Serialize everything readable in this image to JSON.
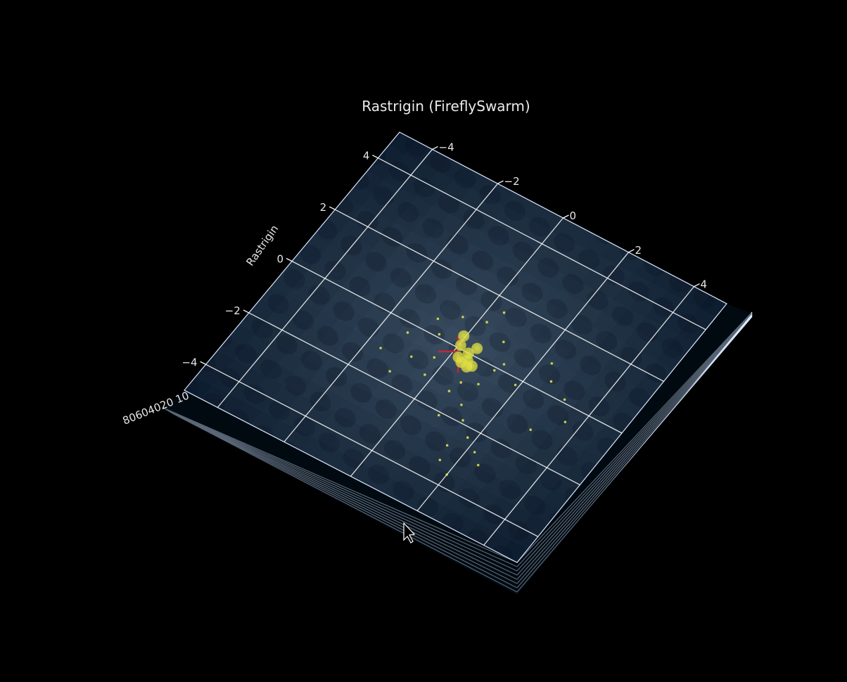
{
  "chart_data": {
    "type": "surface3d",
    "title": "Rastrigin (FireflySwarm)",
    "zlabel": "Rastrigin",
    "xlim": [
      -5,
      5
    ],
    "ylim": [
      -5,
      5
    ],
    "x_ticks": [
      "−4",
      "−2",
      "0",
      "2",
      "4"
    ],
    "y_ticks": [
      "4",
      "2",
      "0",
      "−2",
      "−4"
    ],
    "z_ticks_overlapped": "80604020 10",
    "colors": {
      "background": "#000000",
      "surface_dark": "#0c1c2e",
      "surface_light": "#3e5468",
      "firefly": "#e8e84a",
      "best_marker": "#c0283a",
      "grid": "#ffffff"
    },
    "swarm_large": [
      [
        -0.05,
        0.4
      ],
      [
        0.05,
        0.1
      ],
      [
        0.35,
        0.0
      ],
      [
        0.45,
        0.25
      ],
      [
        0.2,
        -0.25
      ],
      [
        0.35,
        -0.35
      ],
      [
        0.55,
        -0.4
      ],
      [
        0.45,
        -0.2
      ],
      [
        0.65,
        -0.3
      ]
    ],
    "swarm_small": [
      [
        -0.6,
        0.1
      ],
      [
        -0.3,
        -0.6
      ],
      [
        -0.8,
        -0.9
      ],
      [
        -1.0,
        -1.6
      ],
      [
        -0.2,
        -1.2
      ],
      [
        0.6,
        -1.3
      ],
      [
        1.1,
        -1.5
      ],
      [
        1.4,
        -1.9
      ],
      [
        1.8,
        -2.3
      ],
      [
        2.2,
        -2.6
      ],
      [
        2.5,
        -2.9
      ],
      [
        1.6,
        -3.3
      ],
      [
        2.0,
        -3.6
      ],
      [
        1.3,
        0.2
      ],
      [
        1.9,
        -0.2
      ],
      [
        2.6,
        0.4
      ],
      [
        3.2,
        0.1
      ],
      [
        3.6,
        -0.5
      ],
      [
        1.1,
        -0.7
      ],
      [
        0.9,
        0.8
      ],
      [
        0.2,
        1.1
      ],
      [
        -0.4,
        0.9
      ],
      [
        -1.3,
        -0.3
      ],
      [
        -1.6,
        -1.1
      ],
      [
        0.8,
        -2.1
      ],
      [
        1.5,
        -2.8
      ],
      [
        3.0,
        -1.2
      ],
      [
        2.3,
        0.9
      ],
      [
        0.4,
        1.6
      ],
      [
        -0.9,
        0.5
      ],
      [
        1.2,
        -0.1
      ],
      [
        0.7,
        -0.9
      ]
    ],
    "best": [
      0.1,
      -0.1
    ]
  }
}
